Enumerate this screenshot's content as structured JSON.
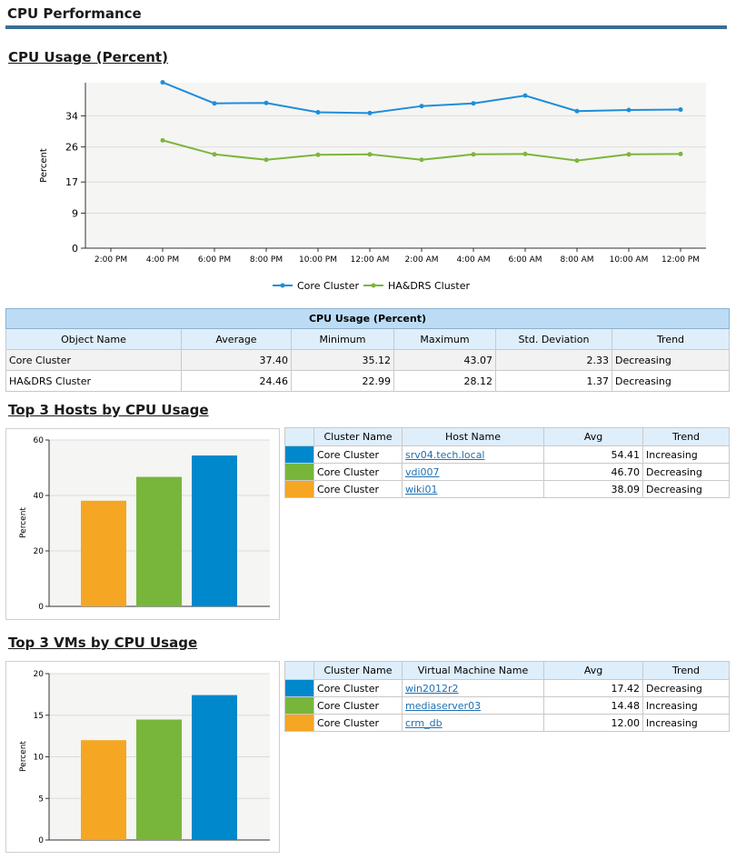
{
  "page": {
    "title": "CPU Performance"
  },
  "usage_section": {
    "heading": "CPU Usage (Percent)"
  },
  "colors": {
    "core": "#1e8ed8",
    "hadrs": "#7cb63c",
    "blue": "#0088cc",
    "green": "#77b63b",
    "orange": "#f5a623"
  },
  "chart_data": [
    {
      "type": "line",
      "ylabel": "Percent",
      "ylim": [
        0,
        42.5
      ],
      "y_ticks": [
        "0",
        "9",
        "17",
        "26",
        "34"
      ],
      "x_ticks": [
        "2:00 PM",
        "4:00 PM",
        "6:00 PM",
        "8:00 PM",
        "10:00 PM",
        "12:00 AM",
        "2:00 AM",
        "4:00 AM",
        "6:00 AM",
        "8:00 AM",
        "10:00 AM",
        "12:00 PM"
      ],
      "x": [
        1,
        2,
        3,
        4,
        5,
        6,
        7,
        8,
        9,
        10,
        11
      ],
      "series": [
        {
          "name": "Core Cluster",
          "values": [
            42.6,
            37.2,
            37.3,
            34.9,
            34.7,
            36.5,
            37.2,
            39.2,
            35.2,
            35.5,
            35.6
          ]
        },
        {
          "name": "HA&DRS Cluster",
          "values": [
            27.7,
            24.1,
            22.7,
            24.0,
            24.1,
            22.7,
            24.1,
            24.2,
            22.5,
            24.1,
            24.2
          ]
        }
      ],
      "legend": "bottom",
      "grid": true
    },
    {
      "type": "bar",
      "ylabel": "Percent",
      "ylim": [
        0,
        60
      ],
      "y_ticks": [
        "0",
        "20",
        "40",
        "60"
      ],
      "categories": [
        "wiki01",
        "vdi007",
        "srv04.tech.local"
      ],
      "values": [
        38.09,
        46.7,
        54.41
      ]
    },
    {
      "type": "bar",
      "ylabel": "Percent",
      "ylim": [
        0,
        20
      ],
      "y_ticks": [
        "0",
        "5",
        "10",
        "15",
        "20"
      ],
      "categories": [
        "crm_db",
        "mediaserver03",
        "win2012r2"
      ],
      "values": [
        12.0,
        14.48,
        17.42
      ]
    }
  ],
  "usage_table": {
    "caption": "CPU Usage (Percent)",
    "headers": [
      "Object Name",
      "Average",
      "Minimum",
      "Maximum",
      "Std. Deviation",
      "Trend"
    ],
    "rows": [
      [
        "Core Cluster",
        "37.40",
        "35.12",
        "43.07",
        "2.33",
        "Decreasing"
      ],
      [
        "HA&DRS Cluster",
        "24.46",
        "22.99",
        "28.12",
        "1.37",
        "Decreasing"
      ]
    ]
  },
  "hosts_section": {
    "heading": "Top 3 Hosts by CPU Usage",
    "headers": [
      "",
      "Cluster Name",
      "Host Name",
      "Avg",
      "Trend"
    ],
    "rows": [
      {
        "cluster": "Core Cluster",
        "name": "srv04.tech.local",
        "avg": "54.41",
        "trend": "Increasing"
      },
      {
        "cluster": "Core Cluster",
        "name": "vdi007",
        "avg": "46.70",
        "trend": "Decreasing"
      },
      {
        "cluster": "Core Cluster",
        "name": "wiki01",
        "avg": "38.09",
        "trend": "Decreasing"
      }
    ]
  },
  "vms_section": {
    "heading": "Top 3 VMs by CPU Usage",
    "headers": [
      "",
      "Cluster Name",
      "Virtual Machine Name",
      "Avg",
      "Trend"
    ],
    "rows": [
      {
        "cluster": "Core Cluster",
        "name": "win2012r2",
        "avg": "17.42",
        "trend": "Decreasing"
      },
      {
        "cluster": "Core Cluster",
        "name": "mediaserver03",
        "avg": "14.48",
        "trend": "Increasing"
      },
      {
        "cluster": "Core Cluster",
        "name": "crm_db",
        "avg": "12.00",
        "trend": "Increasing"
      }
    ]
  }
}
